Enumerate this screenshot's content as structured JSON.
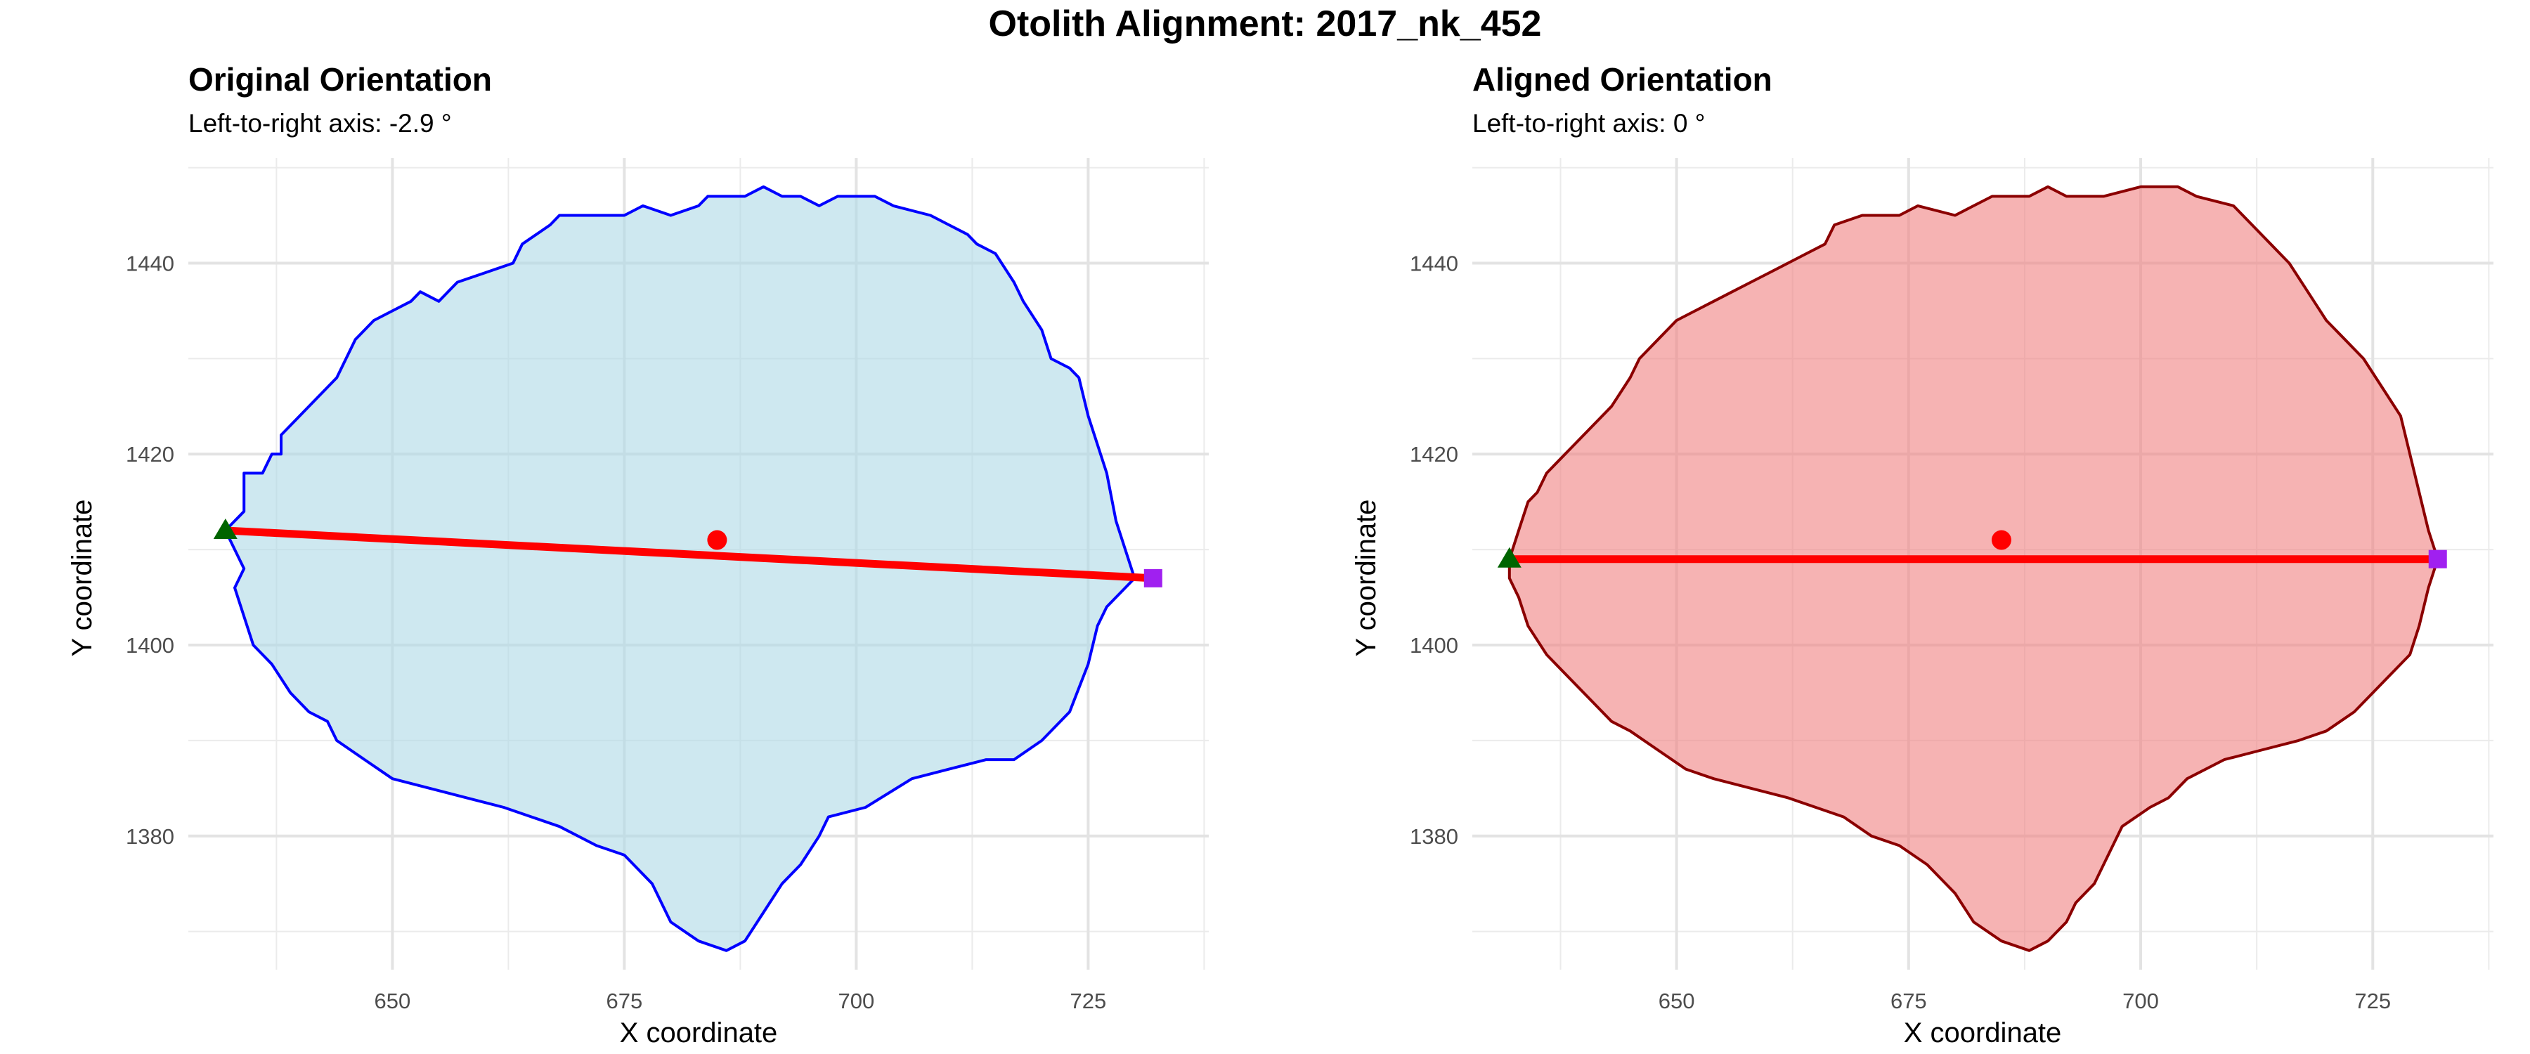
{
  "figure_title": "Otolith Alignment: 2017_nk_452",
  "chart_data": [
    {
      "type": "scatter",
      "title": "Original Orientation",
      "subtitle": "Left-to-right axis: -2.9 °",
      "xlabel": "X coordinate",
      "ylabel": "Y coordinate",
      "xlim": [
        628,
        738
      ],
      "ylim": [
        1366,
        1451
      ],
      "x_ticks": [
        650,
        675,
        700,
        725
      ],
      "y_ticks": [
        1380,
        1400,
        1420,
        1440
      ],
      "grid": true,
      "outline_color": "#0000ff",
      "fill_color": "#add8e6",
      "outline": [
        [
          632,
          1412
        ],
        [
          634,
          1414
        ],
        [
          634,
          1416
        ],
        [
          634,
          1418
        ],
        [
          636,
          1418
        ],
        [
          637,
          1420
        ],
        [
          638,
          1420
        ],
        [
          638,
          1422
        ],
        [
          644,
          1428
        ],
        [
          645,
          1430
        ],
        [
          646,
          1432
        ],
        [
          648,
          1434
        ],
        [
          650,
          1435
        ],
        [
          652,
          1436
        ],
        [
          653,
          1437
        ],
        [
          655,
          1436
        ],
        [
          657,
          1438
        ],
        [
          660,
          1439
        ],
        [
          663,
          1440
        ],
        [
          664,
          1442
        ],
        [
          667,
          1444
        ],
        [
          668,
          1445
        ],
        [
          672,
          1445
        ],
        [
          675,
          1445
        ],
        [
          677,
          1446
        ],
        [
          680,
          1445
        ],
        [
          683,
          1446
        ],
        [
          684,
          1447
        ],
        [
          688,
          1447
        ],
        [
          690,
          1448
        ],
        [
          692,
          1447
        ],
        [
          694,
          1447
        ],
        [
          696,
          1446
        ],
        [
          698,
          1447
        ],
        [
          702,
          1447
        ],
        [
          704,
          1446
        ],
        [
          708,
          1445
        ],
        [
          710,
          1444
        ],
        [
          712,
          1443
        ],
        [
          713,
          1442
        ],
        [
          715,
          1441
        ],
        [
          717,
          1438
        ],
        [
          718,
          1436
        ],
        [
          720,
          1433
        ],
        [
          721,
          1430
        ],
        [
          723,
          1429
        ],
        [
          724,
          1428
        ],
        [
          725,
          1424
        ],
        [
          726,
          1421
        ],
        [
          727,
          1418
        ],
        [
          728,
          1413
        ],
        [
          729,
          1410
        ],
        [
          730,
          1407
        ],
        [
          729,
          1406
        ],
        [
          727,
          1404
        ],
        [
          726,
          1402
        ],
        [
          725,
          1398
        ],
        [
          723,
          1393
        ],
        [
          720,
          1390
        ],
        [
          717,
          1388
        ],
        [
          714,
          1388
        ],
        [
          710,
          1387
        ],
        [
          706,
          1386
        ],
        [
          701,
          1383
        ],
        [
          697,
          1382
        ],
        [
          696,
          1380
        ],
        [
          694,
          1377
        ],
        [
          692,
          1375
        ],
        [
          690,
          1372
        ],
        [
          688,
          1369
        ],
        [
          686,
          1368
        ],
        [
          683,
          1369
        ],
        [
          680,
          1371
        ],
        [
          678,
          1375
        ],
        [
          675,
          1378
        ],
        [
          672,
          1379
        ],
        [
          668,
          1381
        ],
        [
          665,
          1382
        ],
        [
          662,
          1383
        ],
        [
          658,
          1384
        ],
        [
          654,
          1385
        ],
        [
          650,
          1386
        ],
        [
          647,
          1388
        ],
        [
          644,
          1390
        ],
        [
          643,
          1392
        ],
        [
          641,
          1393
        ],
        [
          639,
          1395
        ],
        [
          637,
          1398
        ],
        [
          635,
          1400
        ],
        [
          634,
          1403
        ],
        [
          633,
          1406
        ],
        [
          634,
          1408
        ],
        [
          633,
          1410
        ],
        [
          632,
          1412
        ]
      ],
      "axis_line": {
        "start": [
          632,
          1412
        ],
        "end": [
          732,
          1407
        ],
        "color": "#ff0000"
      },
      "center_point": {
        "x": 685,
        "y": 1411,
        "color": "#ff0000"
      },
      "start_marker": {
        "x": 632,
        "y": 1412,
        "shape": "triangle",
        "color": "#006400"
      },
      "end_marker": {
        "x": 732,
        "y": 1407,
        "shape": "square",
        "color": "#a020f0"
      }
    },
    {
      "type": "scatter",
      "title": "Aligned Orientation",
      "subtitle": "Left-to-right axis: 0 °",
      "xlabel": "X coordinate",
      "ylabel": "Y coordinate",
      "xlim": [
        628,
        738
      ],
      "ylim": [
        1366,
        1451
      ],
      "x_ticks": [
        650,
        675,
        700,
        725
      ],
      "y_ticks": [
        1380,
        1400,
        1420,
        1440
      ],
      "grid": true,
      "outline_color": "#8b0000",
      "fill_color": "#f08080",
      "outline": [
        [
          632,
          1409
        ],
        [
          633,
          1412
        ],
        [
          634,
          1415
        ],
        [
          635,
          1416
        ],
        [
          636,
          1418
        ],
        [
          638,
          1420
        ],
        [
          643,
          1425
        ],
        [
          645,
          1428
        ],
        [
          646,
          1430
        ],
        [
          648,
          1432
        ],
        [
          650,
          1434
        ],
        [
          652,
          1435
        ],
        [
          654,
          1436
        ],
        [
          656,
          1437
        ],
        [
          658,
          1438
        ],
        [
          660,
          1439
        ],
        [
          662,
          1440
        ],
        [
          664,
          1441
        ],
        [
          666,
          1442
        ],
        [
          667,
          1444
        ],
        [
          670,
          1445
        ],
        [
          674,
          1445
        ],
        [
          676,
          1446
        ],
        [
          680,
          1445
        ],
        [
          682,
          1446
        ],
        [
          684,
          1447
        ],
        [
          688,
          1447
        ],
        [
          690,
          1448
        ],
        [
          692,
          1447
        ],
        [
          696,
          1447
        ],
        [
          700,
          1448
        ],
        [
          704,
          1448
        ],
        [
          706,
          1447
        ],
        [
          710,
          1446
        ],
        [
          712,
          1444
        ],
        [
          714,
          1442
        ],
        [
          716,
          1440
        ],
        [
          718,
          1437
        ],
        [
          720,
          1434
        ],
        [
          722,
          1432
        ],
        [
          724,
          1430
        ],
        [
          726,
          1427
        ],
        [
          728,
          1424
        ],
        [
          729,
          1420
        ],
        [
          730,
          1416
        ],
        [
          731,
          1412
        ],
        [
          732,
          1409
        ],
        [
          731,
          1406
        ],
        [
          730,
          1402
        ],
        [
          729,
          1399
        ],
        [
          726,
          1396
        ],
        [
          723,
          1393
        ],
        [
          720,
          1391
        ],
        [
          717,
          1390
        ],
        [
          713,
          1389
        ],
        [
          709,
          1388
        ],
        [
          705,
          1386
        ],
        [
          703,
          1384
        ],
        [
          701,
          1383
        ],
        [
          698,
          1381
        ],
        [
          697,
          1379
        ],
        [
          696,
          1377
        ],
        [
          695,
          1375
        ],
        [
          693,
          1373
        ],
        [
          692,
          1371
        ],
        [
          690,
          1369
        ],
        [
          688,
          1368
        ],
        [
          685,
          1369
        ],
        [
          682,
          1371
        ],
        [
          680,
          1374
        ],
        [
          677,
          1377
        ],
        [
          674,
          1379
        ],
        [
          671,
          1380
        ],
        [
          668,
          1382
        ],
        [
          665,
          1383
        ],
        [
          662,
          1384
        ],
        [
          658,
          1385
        ],
        [
          654,
          1386
        ],
        [
          651,
          1387
        ],
        [
          648,
          1389
        ],
        [
          645,
          1391
        ],
        [
          643,
          1392
        ],
        [
          641,
          1394
        ],
        [
          638,
          1397
        ],
        [
          636,
          1399
        ],
        [
          634,
          1402
        ],
        [
          633,
          1405
        ],
        [
          632,
          1407
        ],
        [
          632,
          1409
        ]
      ],
      "axis_line": {
        "start": [
          632,
          1409
        ],
        "end": [
          732,
          1409
        ],
        "color": "#ff0000"
      },
      "center_point": {
        "x": 685,
        "y": 1411,
        "color": "#ff0000"
      },
      "start_marker": {
        "x": 632,
        "y": 1409,
        "shape": "triangle",
        "color": "#006400"
      },
      "end_marker": {
        "x": 732,
        "y": 1409,
        "shape": "square",
        "color": "#a020f0"
      }
    }
  ]
}
